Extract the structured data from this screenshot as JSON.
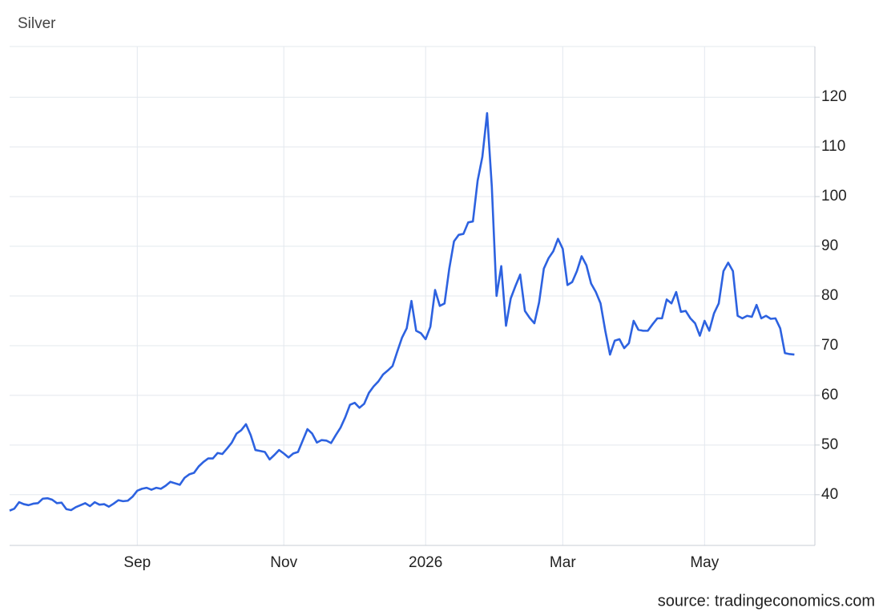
{
  "chart_data": {
    "type": "line",
    "title": "Silver",
    "source": "source: tradingeconomics.com",
    "color": "#2d62e0",
    "grid": true,
    "y_axis_side": "right",
    "ylim": [
      29.8,
      130.2
    ],
    "yticks": [
      40,
      50,
      60,
      70,
      80,
      90,
      100,
      110,
      120
    ],
    "categories": [
      null,
      null,
      null,
      null,
      null,
      null,
      null,
      null,
      null,
      null,
      null,
      null,
      null,
      null,
      null,
      null,
      null,
      null,
      null,
      null,
      null,
      null,
      null,
      null,
      null,
      null,
      null,
      "Sep",
      null,
      null,
      null,
      null,
      null,
      null,
      null,
      null,
      null,
      null,
      null,
      null,
      null,
      null,
      null,
      null,
      null,
      null,
      null,
      null,
      null,
      null,
      null,
      null,
      null,
      null,
      null,
      null,
      null,
      null,
      "Nov",
      null,
      null,
      null,
      null,
      null,
      null,
      null,
      null,
      null,
      null,
      null,
      null,
      null,
      null,
      null,
      null,
      null,
      null,
      null,
      null,
      null,
      null,
      null,
      null,
      null,
      null,
      null,
      null,
      null,
      "2026",
      null,
      null,
      null,
      null,
      null,
      null,
      null,
      null,
      null,
      null,
      null,
      null,
      null,
      null,
      null,
      null,
      null,
      null,
      null,
      null,
      null,
      null,
      null,
      null,
      null,
      null,
      null,
      null,
      "Mar",
      null,
      null,
      null,
      null,
      null,
      null,
      null,
      null,
      null,
      null,
      null,
      null,
      null,
      null,
      null,
      null,
      null,
      null,
      null,
      null,
      null,
      null,
      null,
      null,
      null,
      null,
      null,
      null,
      null,
      "May",
      null,
      null,
      null,
      null,
      null,
      null,
      null,
      null,
      null,
      null,
      null,
      null,
      null,
      null,
      null,
      null,
      null,
      null,
      null
    ],
    "values": [
      36.8,
      37.2,
      38.5,
      38.1,
      37.9,
      38.2,
      38.3,
      39.2,
      39.3,
      39.0,
      38.3,
      38.4,
      37.1,
      36.9,
      37.5,
      37.9,
      38.3,
      37.7,
      38.5,
      38.0,
      38.1,
      37.6,
      38.2,
      38.9,
      38.7,
      38.8,
      39.6,
      40.8,
      41.2,
      41.4,
      41.0,
      41.4,
      41.2,
      41.8,
      42.6,
      42.3,
      42.0,
      43.4,
      44.1,
      44.4,
      45.7,
      46.6,
      47.3,
      47.3,
      48.4,
      48.2,
      49.3,
      50.5,
      52.3,
      53.0,
      54.2,
      52.0,
      49.0,
      48.8,
      48.6,
      47.1,
      48.0,
      49.0,
      48.3,
      47.5,
      48.3,
      48.6,
      50.9,
      53.2,
      52.3,
      50.5,
      51.0,
      50.9,
      50.4,
      52.0,
      53.5,
      55.6,
      58.1,
      58.5,
      57.5,
      58.3,
      60.5,
      61.8,
      62.8,
      64.2,
      65.0,
      65.9,
      68.8,
      71.6,
      73.5,
      79.0,
      73.0,
      72.5,
      71.3,
      73.8,
      81.2,
      78.0,
      78.5,
      85.5,
      91.0,
      92.3,
      92.5,
      94.8,
      95.0,
      103.2,
      108.0,
      116.8,
      102.0,
      80.0,
      86.0,
      74.0,
      79.5,
      82.0,
      84.3,
      77.0,
      75.6,
      74.5,
      78.7,
      85.5,
      87.6,
      89.0,
      91.5,
      89.5,
      82.2,
      82.8,
      85.0,
      88.0,
      86.2,
      82.5,
      80.8,
      78.5,
      73.0,
      68.2,
      71.0,
      71.3,
      69.5,
      70.5,
      75.0,
      73.2,
      73.0,
      73.0,
      74.3,
      75.5,
      75.5,
      79.3,
      78.5,
      80.8,
      76.8,
      77.0,
      75.5,
      74.5,
      72.0,
      75.0,
      73.0,
      76.5,
      78.5,
      85.0,
      86.7,
      85.0,
      76.0,
      75.5,
      76.0,
      75.8,
      78.2,
      75.5,
      76.0,
      75.4,
      75.5,
      73.5,
      68.5,
      68.3,
      68.2
    ]
  }
}
